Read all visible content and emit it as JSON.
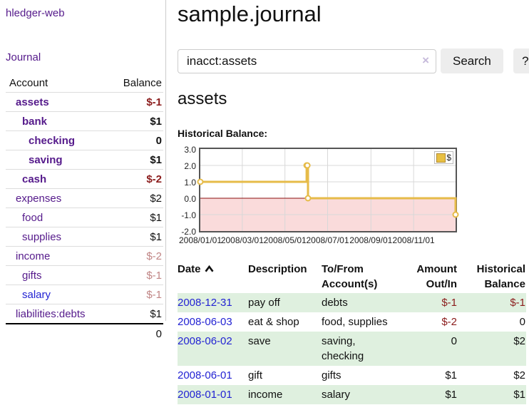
{
  "colors": {
    "link_purple": "#551a8b",
    "link_blue": "#2323d3",
    "neg_strong": "#8b1c1c",
    "neg_muted": "#c08585",
    "row_green": "#dff0df",
    "chart_line": "#e6bb49",
    "chart_neg_bg": "#fadbdb",
    "chart_zero": "#8b0f0f",
    "chart_grid": "#d8d8d8"
  },
  "sidebar": {
    "app_title": "hledger-web",
    "journal_link": "Journal",
    "accounts": {
      "header_account": "Account",
      "header_balance": "Balance",
      "rows": [
        {
          "name": "assets",
          "depth": 0,
          "balance": "$-1",
          "bold": true,
          "neg": "strong",
          "link": "purple"
        },
        {
          "name": "bank",
          "depth": 1,
          "balance": "$1",
          "bold": true,
          "neg": "",
          "link": "purple"
        },
        {
          "name": "checking",
          "depth": 2,
          "balance": "0",
          "bold": true,
          "neg": "",
          "link": "purple"
        },
        {
          "name": "saving",
          "depth": 2,
          "balance": "$1",
          "bold": true,
          "neg": "",
          "link": "purple"
        },
        {
          "name": "cash",
          "depth": 1,
          "balance": "$-2",
          "bold": true,
          "neg": "strong",
          "link": "purple"
        },
        {
          "name": "expenses",
          "depth": 0,
          "balance": "$2",
          "bold": false,
          "neg": "",
          "link": "purple"
        },
        {
          "name": "food",
          "depth": 1,
          "balance": "$1",
          "bold": false,
          "neg": "",
          "link": "purple"
        },
        {
          "name": "supplies",
          "depth": 1,
          "balance": "$1",
          "bold": false,
          "neg": "",
          "link": "purple"
        },
        {
          "name": "income",
          "depth": 0,
          "balance": "$-2",
          "bold": false,
          "neg": "muted",
          "link": "purple"
        },
        {
          "name": "gifts",
          "depth": 1,
          "balance": "$-1",
          "bold": false,
          "neg": "muted",
          "link": "purple"
        },
        {
          "name": "salary",
          "depth": 1,
          "balance": "$-1",
          "bold": false,
          "neg": "muted",
          "link": "blue"
        },
        {
          "name": "liabilities:debts",
          "depth": 0,
          "balance": "$1",
          "bold": false,
          "neg": "",
          "link": "purple"
        }
      ],
      "total": "0"
    }
  },
  "main": {
    "title": "sample.journal",
    "search": {
      "value": "inacct:assets",
      "clear_icon": "×",
      "search_button": "Search",
      "help_button": "?"
    },
    "account_heading": "assets",
    "chart_label": "Historical Balance:"
  },
  "chart_data": {
    "type": "line",
    "step": true,
    "title": "Historical Balance",
    "series": [
      {
        "name": "$",
        "points": [
          [
            "2008-01-01",
            1
          ],
          [
            "2008-06-01",
            2
          ],
          [
            "2008-06-02",
            2
          ],
          [
            "2008-06-03",
            0
          ],
          [
            "2008-12-31",
            -1
          ]
        ]
      }
    ],
    "x_range": [
      "2008-01-01",
      "2008-12-31"
    ],
    "x_ticks": [
      "2008/01/01",
      "2008/03/01",
      "2008/05/01",
      "2008/07/01",
      "2008/09/01",
      "2008/11/01"
    ],
    "y_ticks": [
      3.0,
      2.0,
      1.0,
      0.0,
      -1.0,
      -2.0
    ],
    "ylim": [
      -2.0,
      3.0
    ],
    "grid": true,
    "legend": {
      "position": "top-right",
      "label": "$"
    }
  },
  "register_table": {
    "headers": {
      "date": "Date",
      "description": "Description",
      "account_line1": "To/From",
      "account_line2": "Account(s)",
      "amount_line1": "Amount",
      "amount_line2": "Out/In",
      "balance_line1": "Historical",
      "balance_line2": "Balance"
    },
    "rows": [
      {
        "date": "2008-12-31",
        "description": "pay off",
        "accounts": "debts",
        "amount": "$-1",
        "balance": "$-1"
      },
      {
        "date": "2008-06-03",
        "description": "eat & shop",
        "accounts": "food, supplies",
        "amount": "$-2",
        "balance": "0"
      },
      {
        "date": "2008-06-02",
        "description": "save",
        "accounts": "saving, checking",
        "amount": "0",
        "balance": "$2"
      },
      {
        "date": "2008-06-01",
        "description": "gift",
        "accounts": "gifts",
        "amount": "$1",
        "balance": "$2"
      },
      {
        "date": "2008-01-01",
        "description": "income",
        "accounts": "salary",
        "amount": "$1",
        "balance": "$1"
      }
    ]
  }
}
